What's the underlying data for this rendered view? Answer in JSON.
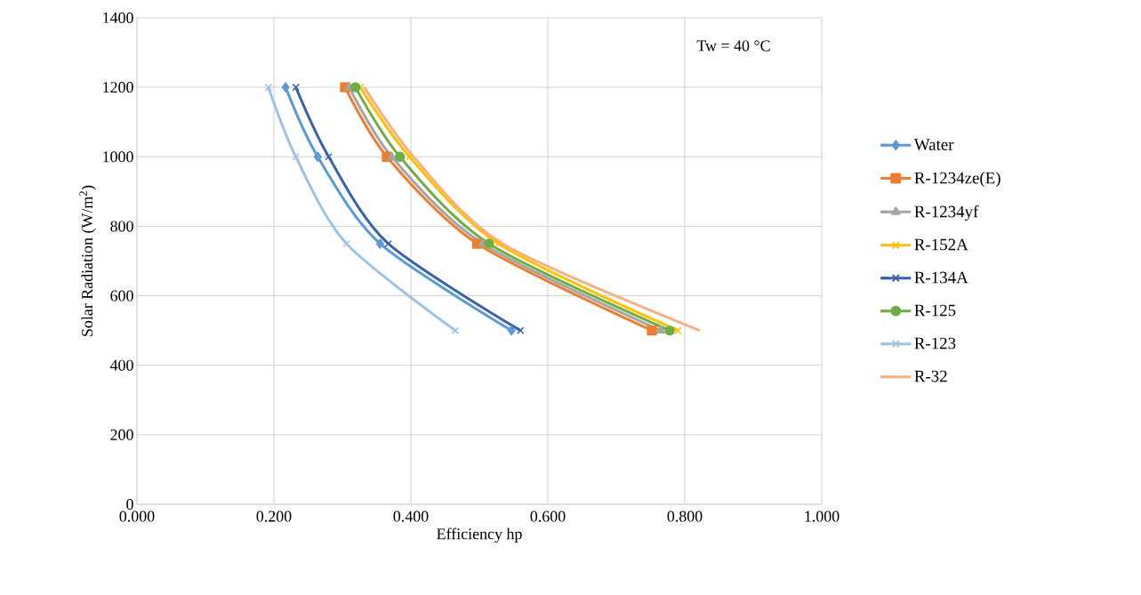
{
  "chart_data": {
    "type": "line",
    "xlabel": "Efficiency hp",
    "ylabel": "Solar Radiation (W/m$^{2}$)",
    "annotations": [
      "Tw = 40 °C"
    ],
    "xlim": [
      0,
      1
    ],
    "ylim": [
      0,
      1400
    ],
    "xticks": [
      {
        "value": 0,
        "label": "0.000"
      },
      {
        "value": 0.2,
        "label": "0.200"
      },
      {
        "value": 0.4,
        "label": "0.400"
      },
      {
        "value": 0.6,
        "label": "0.600"
      },
      {
        "value": 0.8,
        "label": "0.800"
      },
      {
        "value": 1,
        "label": "1.000"
      }
    ],
    "yticks": [
      0,
      200,
      400,
      600,
      800,
      1000,
      1200,
      1400
    ],
    "grid": true,
    "legend": "right",
    "series": [
      {
        "name": "Water",
        "color": "#5b9bd5",
        "marker": "diamond",
        "x": [
          0.217,
          0.264,
          0.355,
          0.547
        ],
        "values": [
          1200,
          1000,
          750,
          500
        ]
      },
      {
        "name": "R-1234ze(E)",
        "color": "#ed7d31",
        "marker": "square",
        "x": [
          0.304,
          0.365,
          0.497,
          0.752
        ],
        "values": [
          1200,
          1000,
          750,
          500
        ]
      },
      {
        "name": "R-1234yf",
        "color": "#a5a5a5",
        "marker": "triangle",
        "x": [
          0.31,
          0.372,
          0.505,
          0.765
        ],
        "values": [
          1200,
          1000,
          750,
          500
        ]
      },
      {
        "name": "R-152A",
        "color": "#ffc000",
        "marker": "cross",
        "x": [
          0.326,
          0.398,
          0.528,
          0.79
        ],
        "values": [
          1200,
          1000,
          750,
          500
        ]
      },
      {
        "name": "R-134A",
        "color": "#3a62aa",
        "marker": "cross",
        "x": [
          0.232,
          0.28,
          0.367,
          0.56
        ],
        "values": [
          1200,
          1000,
          750,
          500
        ]
      },
      {
        "name": "R-125",
        "color": "#70ad47",
        "marker": "circle",
        "x": [
          0.319,
          0.384,
          0.514,
          0.778
        ],
        "values": [
          1200,
          1000,
          750,
          500
        ]
      },
      {
        "name": "R-123",
        "color": "#9dc3e6",
        "marker": "cross",
        "x": [
          0.192,
          0.232,
          0.306,
          0.465
        ],
        "values": [
          1200,
          1000,
          750,
          500
        ]
      },
      {
        "name": "R-32",
        "color": "#f4b183",
        "marker": "none",
        "x": [
          0.332,
          0.404,
          0.534,
          0.822
        ],
        "values": [
          1200,
          1000,
          750,
          500
        ]
      }
    ]
  }
}
